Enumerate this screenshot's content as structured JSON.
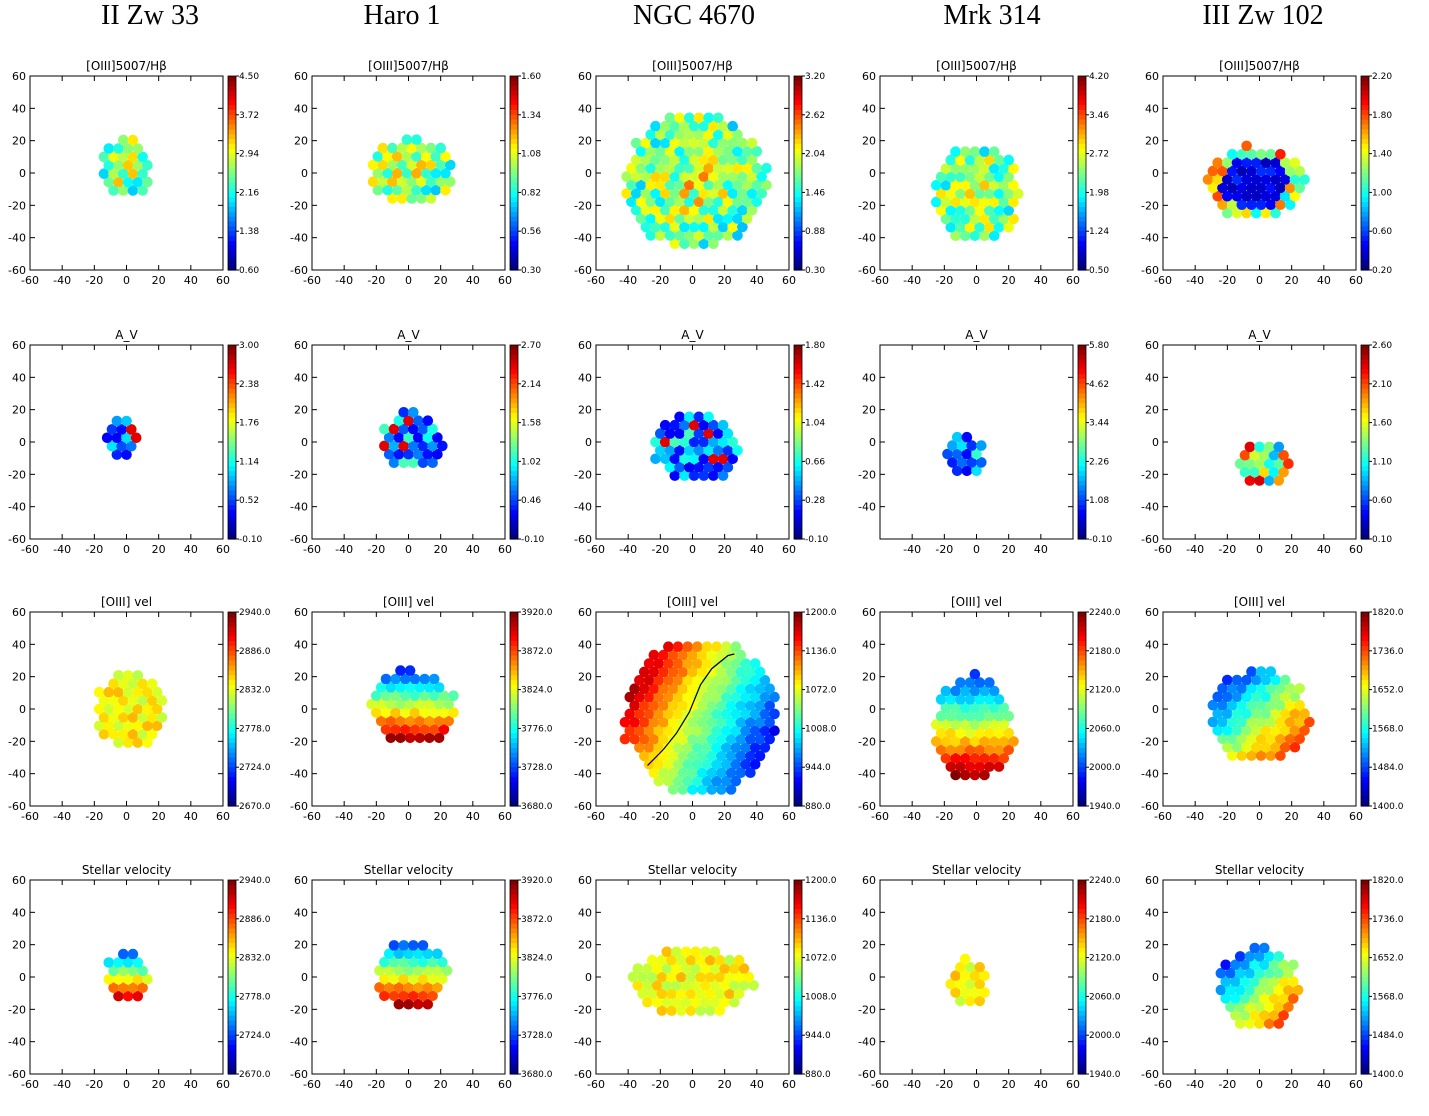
{
  "chart_data": {
    "type": "heatmap",
    "columns": [
      "II Zw 33",
      "Haro 1",
      "NGC 4670",
      "Mrk 314",
      "III Zw 102"
    ],
    "row_titles": [
      "[OIII]5007/Hβ",
      "A_V",
      "[OIII] vel",
      "Stellar velocity"
    ],
    "colormap": "jet",
    "axis_ticks": {
      "default": [
        "-60",
        "-40",
        "-20",
        "0",
        "20",
        "40",
        "60"
      ],
      "mrk314_av_x": [
        "-40",
        "-20",
        "0",
        "20",
        "40"
      ],
      "mrk314_av_y": [
        "-40",
        "-20",
        "0",
        "20",
        "40"
      ]
    },
    "xlim": [
      -60,
      60
    ],
    "ylim": [
      -60,
      60
    ],
    "panels": [
      [
        {
          "colorbar_ticks": [
            "4.50",
            "3.72",
            "2.94",
            "2.16",
            "1.38",
            "0.60"
          ],
          "vmin": 0.6,
          "vmax": 4.5,
          "region": {
            "cx": 0,
            "cy": 3,
            "rx": 17,
            "ry": 19
          },
          "pattern": "ratio_mixed"
        },
        {
          "colorbar_ticks": [
            "3.00",
            "2.38",
            "1.76",
            "1.14",
            "0.52",
            "-0.10"
          ],
          "vmin": -0.1,
          "vmax": 3.0,
          "region": {
            "cx": -3,
            "cy": 2,
            "rx": 12,
            "ry": 15
          },
          "pattern": "av_low"
        },
        {
          "colorbar_ticks": [
            "2940.0",
            "2886.0",
            "2832.0",
            "2778.0",
            "2724.0",
            "2670.0"
          ],
          "vmin": 2670,
          "vmax": 2940,
          "region": {
            "cx": 2,
            "cy": -1,
            "rx": 22,
            "ry": 25
          },
          "pattern": "vel_flat"
        },
        {
          "colorbar_ticks": [
            "2940.0",
            "2886.0",
            "2832.0",
            "2778.0",
            "2724.0",
            "2670.0"
          ],
          "vmin": 2670,
          "vmax": 2940,
          "region": {
            "cx": 0,
            "cy": 0,
            "rx": 14,
            "ry": 17
          },
          "pattern": "vel_top_bottom"
        }
      ],
      [
        {
          "colorbar_ticks": [
            "1.60",
            "1.34",
            "1.08",
            "0.82",
            "0.56",
            "0.30"
          ],
          "vmin": 0.3,
          "vmax": 1.6,
          "region": {
            "cx": 2,
            "cy": 1,
            "rx": 27,
            "ry": 22
          },
          "pattern": "ratio_mixed"
        },
        {
          "colorbar_ticks": [
            "2.70",
            "2.14",
            "1.58",
            "1.02",
            "0.46",
            "-0.10"
          ],
          "vmin": -0.1,
          "vmax": 2.7,
          "region": {
            "cx": 2,
            "cy": 1,
            "rx": 20,
            "ry": 19
          },
          "pattern": "av_low"
        },
        {
          "colorbar_ticks": [
            "3920.0",
            "3872.0",
            "3824.0",
            "3776.0",
            "3728.0",
            "3680.0"
          ],
          "vmin": 3680,
          "vmax": 3920,
          "region": {
            "cx": 2,
            "cy": 1,
            "rx": 28,
            "ry": 24
          },
          "pattern": "vel_top_bottom"
        },
        {
          "colorbar_ticks": [
            "3920.0",
            "3872.0",
            "3824.0",
            "3776.0",
            "3728.0",
            "3680.0"
          ],
          "vmin": 3680,
          "vmax": 3920,
          "region": {
            "cx": 2,
            "cy": 1,
            "rx": 23,
            "ry": 23
          },
          "pattern": "vel_top_bottom"
        }
      ],
      [
        {
          "colorbar_ticks": [
            "3.20",
            "2.62",
            "2.04",
            "1.46",
            "0.88",
            "0.30"
          ],
          "vmin": 0.3,
          "vmax": 3.2,
          "region": {
            "cx": 2,
            "cy": -5,
            "rx": 46,
            "ry": 44
          },
          "pattern": "ratio_mixed"
        },
        {
          "colorbar_ticks": [
            "1.80",
            "1.42",
            "1.04",
            "0.66",
            "0.28",
            "-0.10"
          ],
          "vmin": -0.1,
          "vmax": 1.8,
          "region": {
            "cx": 2,
            "cy": -3,
            "rx": 28,
            "ry": 23
          },
          "pattern": "av_low"
        },
        {
          "colorbar_ticks": [
            "1200.0",
            "1136.0",
            "1072.0",
            "1008.0",
            "944.0",
            "880.0"
          ],
          "vmin": 880,
          "vmax": 1200,
          "region": {
            "cx": 5,
            "cy": -5,
            "rx": 50,
            "ry": 50
          },
          "pattern": "vel_left_right"
        },
        {
          "colorbar_ticks": [
            "1200.0",
            "1136.0",
            "1072.0",
            "1008.0",
            "944.0",
            "880.0"
          ],
          "vmin": 880,
          "vmax": 1200,
          "region": {
            "cx": 0,
            "cy": -3,
            "rx": 40,
            "ry": 23
          },
          "pattern": "vel_flat"
        }
      ],
      [
        {
          "colorbar_ticks": [
            "4.20",
            "3.46",
            "2.72",
            "1.98",
            "1.24",
            "0.50"
          ],
          "vmin": 0.5,
          "vmax": 4.2,
          "region": {
            "cx": 0,
            "cy": -12,
            "rx": 28,
            "ry": 32
          },
          "pattern": "ratio_mixed"
        },
        {
          "colorbar_ticks": [
            "5.80",
            "4.62",
            "3.44",
            "2.26",
            "1.08",
            "-0.10"
          ],
          "vmin": -0.1,
          "vmax": 5.8,
          "region": {
            "cx": -8,
            "cy": -8,
            "rx": 13,
            "ry": 15
          },
          "pattern": "av_low"
        },
        {
          "colorbar_ticks": [
            "2240.0",
            "2180.0",
            "2120.0",
            "2060.0",
            "2000.0",
            "1940.0"
          ],
          "vmin": 1940,
          "vmax": 2240,
          "region": {
            "cx": -2,
            "cy": -12,
            "rx": 26,
            "ry": 34
          },
          "pattern": "vel_top_bottom"
        },
        {
          "colorbar_ticks": [
            "2240.0",
            "2180.0",
            "2120.0",
            "2060.0",
            "2000.0",
            "1940.0"
          ],
          "vmin": 1940,
          "vmax": 2240,
          "region": {
            "cx": -6,
            "cy": -4,
            "rx": 13,
            "ry": 16
          },
          "pattern": "vel_flat"
        }
      ],
      [
        {
          "colorbar_ticks": [
            "2.20",
            "1.80",
            "1.40",
            "1.00",
            "0.60",
            "0.20"
          ],
          "vmin": 0.2,
          "vmax": 2.2,
          "region": {
            "cx": -3,
            "cy": -6,
            "rx": 32,
            "ry": 24
          },
          "pattern": "ratio_core_low"
        },
        {
          "colorbar_ticks": [
            "2.60",
            "2.10",
            "1.60",
            "1.10",
            "0.60",
            "0.10"
          ],
          "vmin": 0.1,
          "vmax": 2.6,
          "region": {
            "cx": 3,
            "cy": -14,
            "rx": 18,
            "ry": 15
          },
          "pattern": "av_high"
        },
        {
          "colorbar_ticks": [
            "1820.0",
            "1736.0",
            "1652.0",
            "1568.0",
            "1484.0",
            "1400.0"
          ],
          "vmin": 1400,
          "vmax": 1820,
          "region": {
            "cx": 0,
            "cy": -4,
            "rx": 32,
            "ry": 30
          },
          "pattern": "vel_bottom_right"
        },
        {
          "colorbar_ticks": [
            "1820.0",
            "1736.0",
            "1652.0",
            "1568.0",
            "1484.0",
            "1400.0"
          ],
          "vmin": 1400,
          "vmax": 1820,
          "region": {
            "cx": 0,
            "cy": -7,
            "rx": 27,
            "ry": 27
          },
          "pattern": "vel_bottom_right"
        }
      ]
    ],
    "zero_velocity_line": [
      [
        -28,
        -35
      ],
      [
        -18,
        -25
      ],
      [
        -10,
        -15
      ],
      [
        -2,
        -2
      ],
      [
        5,
        15
      ],
      [
        12,
        25
      ],
      [
        22,
        33
      ],
      [
        26,
        34
      ]
    ]
  }
}
